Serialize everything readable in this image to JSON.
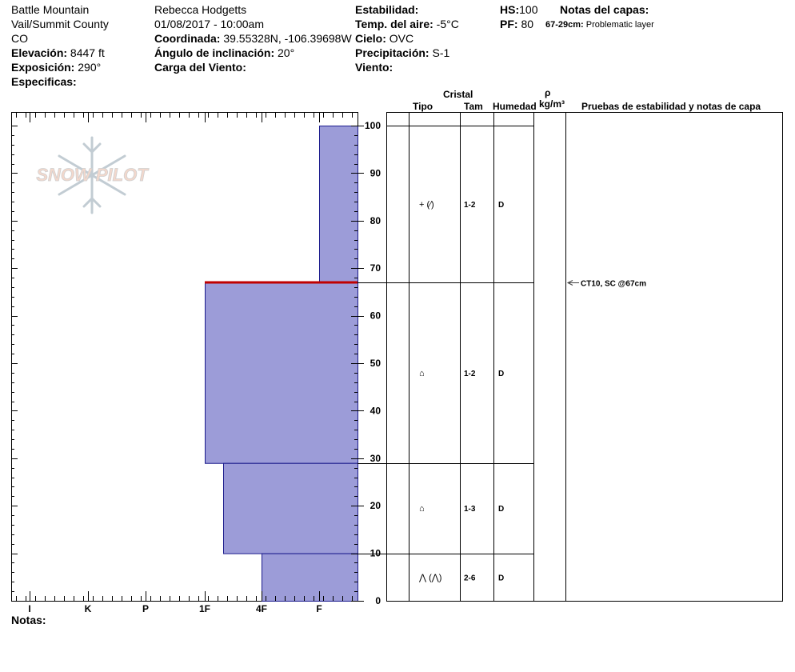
{
  "header": {
    "location": "Battle Mountain",
    "range": "Vail/Summit County",
    "state": "CO",
    "elevation_label": "Elevación:",
    "elevation_value": "8447 ft",
    "aspect_label": "Exposición:",
    "aspect_value": "290°",
    "specifics_label": "Especificas:",
    "observer": "Rebecca Hodgetts",
    "datetime": "01/08/2017 - 10:00am",
    "coord_label": "Coordinada:",
    "coord_value": "39.55328N, -106.39698W",
    "incline_label": "Ángulo de inclinación:",
    "incline_value": "20°",
    "wind_loading_label": "Carga del Viento:",
    "stability_label": "Estabilidad:",
    "air_temp_label": "Temp. del aire:",
    "air_temp_value": "-5°C",
    "sky_label": "Cielo:",
    "sky_value": "OVC",
    "precip_label": "Precipitación:",
    "precip_value": "S-1",
    "wind_label": "Viento:",
    "hs_label": "HS:",
    "hs_value": "100",
    "pf_label": "PF:",
    "pf_value": "80",
    "layer_notes_label": "Notas del capas:",
    "layer_note_range": "67-29cm:",
    "layer_note_text": "Problematic layer"
  },
  "logo_text": "SNOW PILOT",
  "notes_label": "Notas:",
  "table_headers": {
    "crystal": "Cristal",
    "type": "Tipo",
    "size": "Tam",
    "moisture": "Humedad",
    "rho": "ρ",
    "density_unit": "kg/m³",
    "tests": "Pruebas de estabilidad y notas de capa"
  },
  "colors": {
    "bar_fill": "#9c9cd8",
    "bar_stroke": "#1a1a8c",
    "weak_layer": "#c00000"
  },
  "chart_data": {
    "type": "bar",
    "orientation": "horizontal",
    "y_axis": {
      "range": [
        0,
        100
      ],
      "ticks": [
        0,
        10,
        20,
        30,
        40,
        50,
        60,
        70,
        80,
        90,
        100
      ],
      "unit": "cm"
    },
    "x_axis": {
      "categories": [
        "I",
        "K",
        "P",
        "1F",
        "4F",
        "F"
      ],
      "direction": "hardness decreases to the right"
    },
    "layers": [
      {
        "top": 100,
        "bottom": 67,
        "hardness": "F"
      },
      {
        "top": 67,
        "bottom": 29,
        "hardness": "1F"
      },
      {
        "top": 29,
        "bottom": 10,
        "hardness": "1F-"
      },
      {
        "top": 10,
        "bottom": 0,
        "hardness": "4F"
      }
    ],
    "weak_layer_depth": 67
  },
  "layers_table": [
    {
      "top": 100,
      "bottom": 67,
      "type": "+ (⁄)",
      "size": "1-2",
      "moisture": "D"
    },
    {
      "top": 67,
      "bottom": 29,
      "type": "⌂",
      "size": "1-2",
      "moisture": "D"
    },
    {
      "top": 29,
      "bottom": 10,
      "type": "⌂",
      "size": "1-3",
      "moisture": "D"
    },
    {
      "top": 10,
      "bottom": 0,
      "type": "⋀ (⋀)",
      "size": "2-6",
      "moisture": "D"
    }
  ],
  "tests": [
    {
      "depth": 67,
      "text": "CT10, SC @67cm"
    }
  ]
}
